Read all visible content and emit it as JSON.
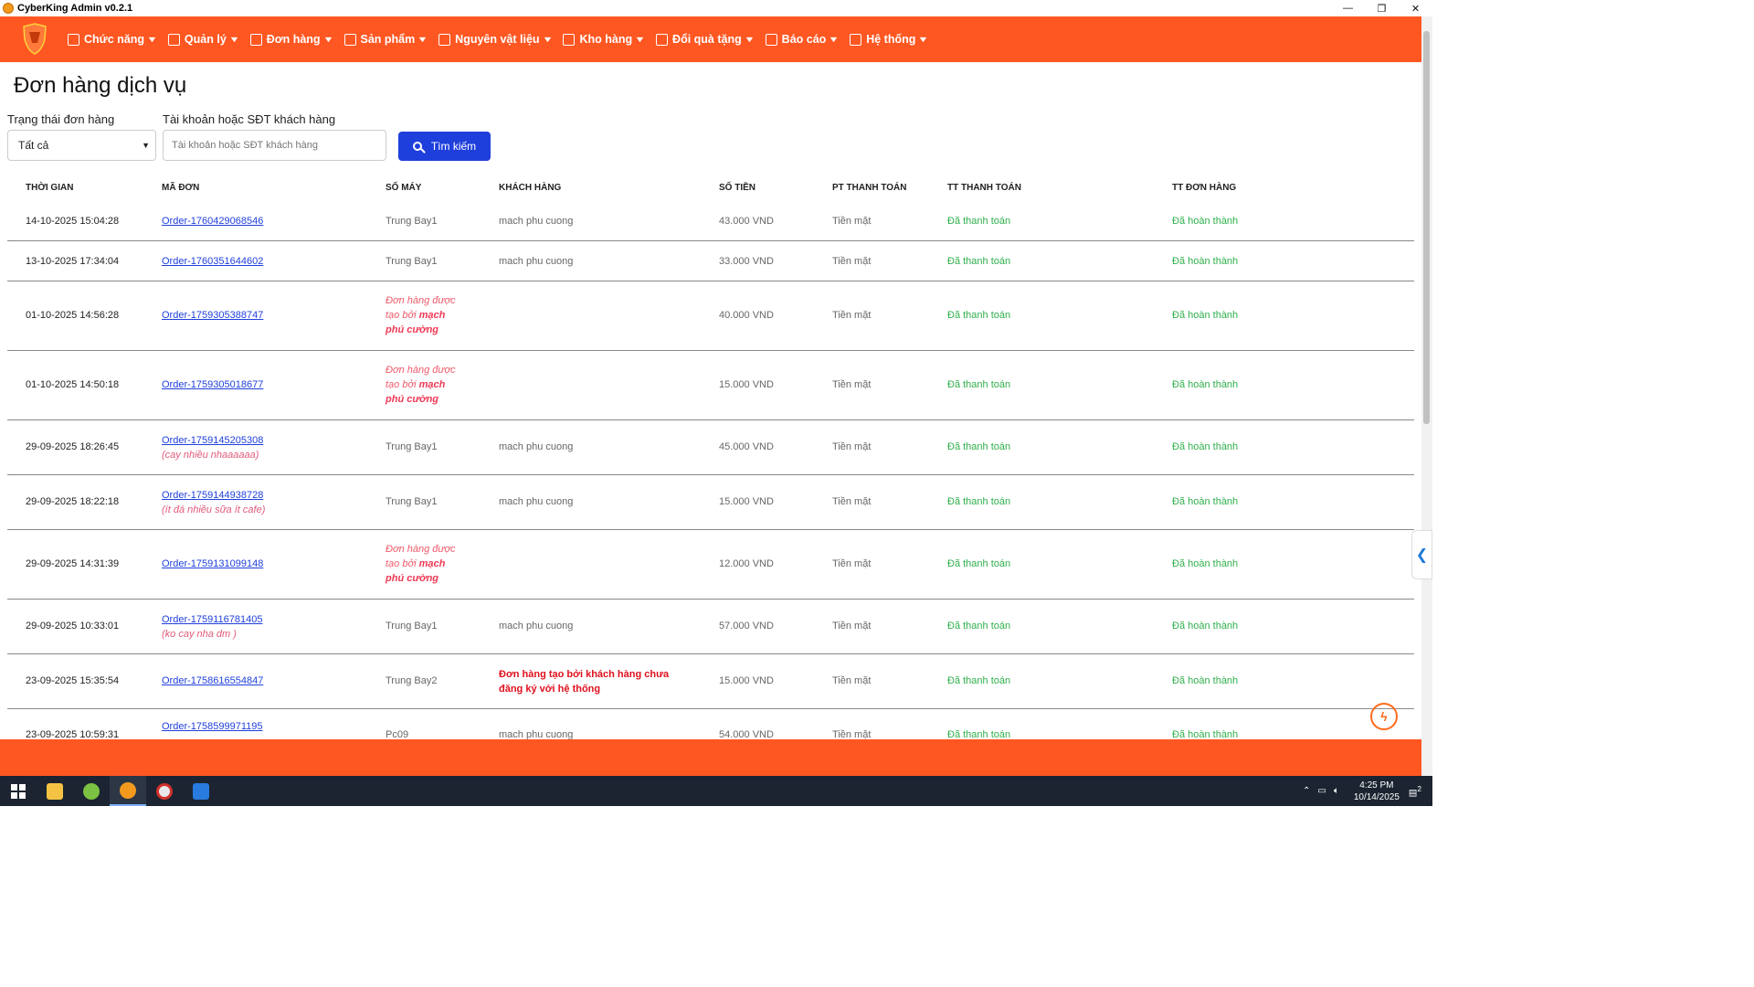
{
  "window": {
    "title": "CyberKing Admin v0.2.1",
    "controls": [
      "—",
      "❐",
      "✕"
    ]
  },
  "nav": {
    "items": [
      {
        "label": "Chức năng",
        "icon": "user-badge-icon"
      },
      {
        "label": "Quản lý",
        "icon": "list-icon"
      },
      {
        "label": "Đơn hàng",
        "icon": "basket-icon"
      },
      {
        "label": "Sản phẩm",
        "icon": "box-icon"
      },
      {
        "label": "Nguyên vật liệu",
        "icon": "ingredients-icon"
      },
      {
        "label": "Kho hàng",
        "icon": "warehouse-icon"
      },
      {
        "label": "Đổi quà tặng",
        "icon": "gift-icon"
      },
      {
        "label": "Báo cáo",
        "icon": "clipboard-icon"
      },
      {
        "label": "Hệ thống",
        "icon": "system-user-icon"
      }
    ]
  },
  "page": {
    "title": "Đơn hàng dịch vụ"
  },
  "filters": {
    "status_label": "Trạng thái đơn hàng",
    "status_value": "Tất cả",
    "account_label": "Tài khoản hoặc SĐT khách hàng",
    "account_placeholder": "Tài khoản hoặc SĐT khách hàng",
    "search_button": "Tìm kiếm"
  },
  "table": {
    "headers": [
      "THỜI GIAN",
      "MÃ ĐƠN",
      "SỐ MÁY",
      "KHÁCH HÀNG",
      "SỐ TIỀN",
      "PT THANH TOÁN",
      "TT THANH TOÁN",
      "TT ĐƠN HÀNG"
    ],
    "rows": [
      {
        "time": "14-10-2025 15:04:28",
        "code": "Order-1760429068546",
        "note": "",
        "machine": "Trung Bay1",
        "customer": "mach phu cuong",
        "amount": "43.000 VND",
        "method": "Tiền mặt",
        "pay_status": "Đã thanh toán",
        "order_status": "Đã hoàn thành"
      },
      {
        "time": "13-10-2025 17:34:04",
        "code": "Order-1760351644602",
        "note": "",
        "machine": "Trung Bay1",
        "customer": "mach phu cuong",
        "amount": "33.000 VND",
        "method": "Tiền mặt",
        "pay_status": "Đã thanh toán",
        "order_status": "Đã hoàn thành"
      },
      {
        "time": "01-10-2025 14:56:28",
        "code": "Order-1759305388747",
        "note": "",
        "machine_note": {
          "l1": "Đơn hàng được",
          "l2a": "tạo bởi ",
          "l2b": "mạch",
          "l3": "phú cường"
        },
        "customer": "",
        "amount": "40.000 VND",
        "method": "Tiền mặt",
        "pay_status": "Đã thanh toán",
        "order_status": "Đã hoàn thành"
      },
      {
        "time": "01-10-2025 14:50:18",
        "code": "Order-1759305018677",
        "note": "",
        "machine_note": {
          "l1": "Đơn hàng được",
          "l2a": "tạo bởi ",
          "l2b": "mạch",
          "l3": "phú cường"
        },
        "customer": "",
        "amount": "15.000 VND",
        "method": "Tiền mặt",
        "pay_status": "Đã thanh toán",
        "order_status": "Đã hoàn thành"
      },
      {
        "time": "29-09-2025 18:26:45",
        "code": "Order-1759145205308",
        "note": "(cay nhiều nhaaaaaa)",
        "machine": "Trung Bay1",
        "customer": "mach phu cuong",
        "amount": "45.000 VND",
        "method": "Tiền mặt",
        "pay_status": "Đã thanh toán",
        "order_status": "Đã hoàn thành"
      },
      {
        "time": "29-09-2025 18:22:18",
        "code": "Order-1759144938728",
        "note": "(ít đá nhiều sữa ít cafe)",
        "machine": "Trung Bay1",
        "customer": "mach phu cuong",
        "amount": "15.000 VND",
        "method": "Tiền mặt",
        "pay_status": "Đã thanh toán",
        "order_status": "Đã hoàn thành"
      },
      {
        "time": "29-09-2025 14:31:39",
        "code": "Order-1759131099148",
        "note": "",
        "machine_note": {
          "l1": "Đơn hàng được",
          "l2a": "tạo bởi ",
          "l2b": "mạch",
          "l3": "phú cường"
        },
        "customer": "",
        "amount": "12.000 VND",
        "method": "Tiền mặt",
        "pay_status": "Đã thanh toán",
        "order_status": "Đã hoàn thành"
      },
      {
        "time": "29-09-2025 10:33:01",
        "code": "Order-1759116781405",
        "note": "(ko cay nha dm )",
        "machine": "Trung Bay1",
        "customer": "mach phu cuong",
        "amount": "57.000 VND",
        "method": "Tiền mặt",
        "pay_status": "Đã thanh toán",
        "order_status": "Đã hoàn thành"
      },
      {
        "time": "23-09-2025 15:35:54",
        "code": "Order-1758616554847",
        "note": "",
        "machine": "Trung Bay2",
        "customer_warning": {
          "l1": "Đơn hàng tạo bởi khách hàng chưa",
          "l2": "đăng ký với hệ thống"
        },
        "amount": "15.000 VND",
        "method": "Tiền mặt",
        "pay_status": "Đã thanh toán",
        "order_status": "Đã hoàn thành"
      },
      {
        "time": "23-09-2025 10:59:31",
        "code": "Order-1758599971195",
        "note": "",
        "machine": "Pc09",
        "customer": "mach phu cuong",
        "amount": "54.000 VND",
        "method": "Tiền mặt",
        "pay_status": "Đã thanh toán",
        "order_status": "Đã hoàn thành"
      }
    ]
  },
  "taskbar": {
    "time": "4:25 PM",
    "date": "10/14/2025",
    "notif_count": "2"
  },
  "colors": {
    "brand_orange": "#ff5722",
    "primary_blue": "#1f3fdc",
    "success_green": "#2fb04c"
  }
}
